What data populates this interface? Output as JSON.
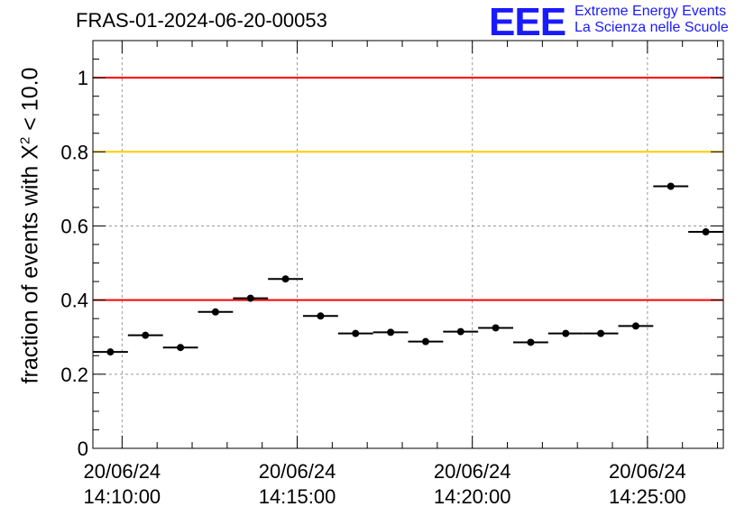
{
  "title": "FRAS-01-2024-06-20-00053",
  "logo": {
    "letters": "EEE",
    "line1": "Extreme Energy Events",
    "line2": "La Scienza nelle Scuole",
    "color": "#1a1aff"
  },
  "chart_data": {
    "type": "scatter",
    "ylabel_prefix": "fraction of events with X",
    "ylabel_sup": "2",
    "ylabel_suffix": " < 10.0",
    "ylim": [
      0,
      1.1
    ],
    "yticks": [
      0,
      0.2,
      0.4,
      0.6,
      0.8,
      1
    ],
    "ytick_labels": [
      "0",
      "0.2",
      "0.4",
      "0.6",
      "0.8",
      "1"
    ],
    "xlim": [
      "14:09:10",
      "14:27:10"
    ],
    "xticks": [
      "14:10:00",
      "14:15:00",
      "14:20:00",
      "14:25:00"
    ],
    "xtick_labels": [
      [
        "20/06/24",
        "14:10:00"
      ],
      [
        "20/06/24",
        "14:15:00"
      ],
      [
        "20/06/24",
        "14:20:00"
      ],
      [
        "20/06/24",
        "14:25:00"
      ]
    ],
    "grid": true,
    "reference_lines": [
      {
        "y": 1.0,
        "color": "#ff0000"
      },
      {
        "y": 0.8,
        "color": "#ffcc00"
      },
      {
        "y": 0.4,
        "color": "#ff0000"
      }
    ],
    "bin_width_seconds": 60,
    "points": [
      {
        "x": "14:09:40",
        "y": 0.26
      },
      {
        "x": "14:10:40",
        "y": 0.305
      },
      {
        "x": "14:11:40",
        "y": 0.272
      },
      {
        "x": "14:12:40",
        "y": 0.368
      },
      {
        "x": "14:13:40",
        "y": 0.405
      },
      {
        "x": "14:14:40",
        "y": 0.457
      },
      {
        "x": "14:15:40",
        "y": 0.357
      },
      {
        "x": "14:16:40",
        "y": 0.31
      },
      {
        "x": "14:17:40",
        "y": 0.313
      },
      {
        "x": "14:18:40",
        "y": 0.288
      },
      {
        "x": "14:19:40",
        "y": 0.315
      },
      {
        "x": "14:20:40",
        "y": 0.325
      },
      {
        "x": "14:21:40",
        "y": 0.286
      },
      {
        "x": "14:22:40",
        "y": 0.31
      },
      {
        "x": "14:23:40",
        "y": 0.31
      },
      {
        "x": "14:24:40",
        "y": 0.33
      },
      {
        "x": "14:25:40",
        "y": 0.707
      },
      {
        "x": "14:26:40",
        "y": 0.584
      }
    ]
  }
}
